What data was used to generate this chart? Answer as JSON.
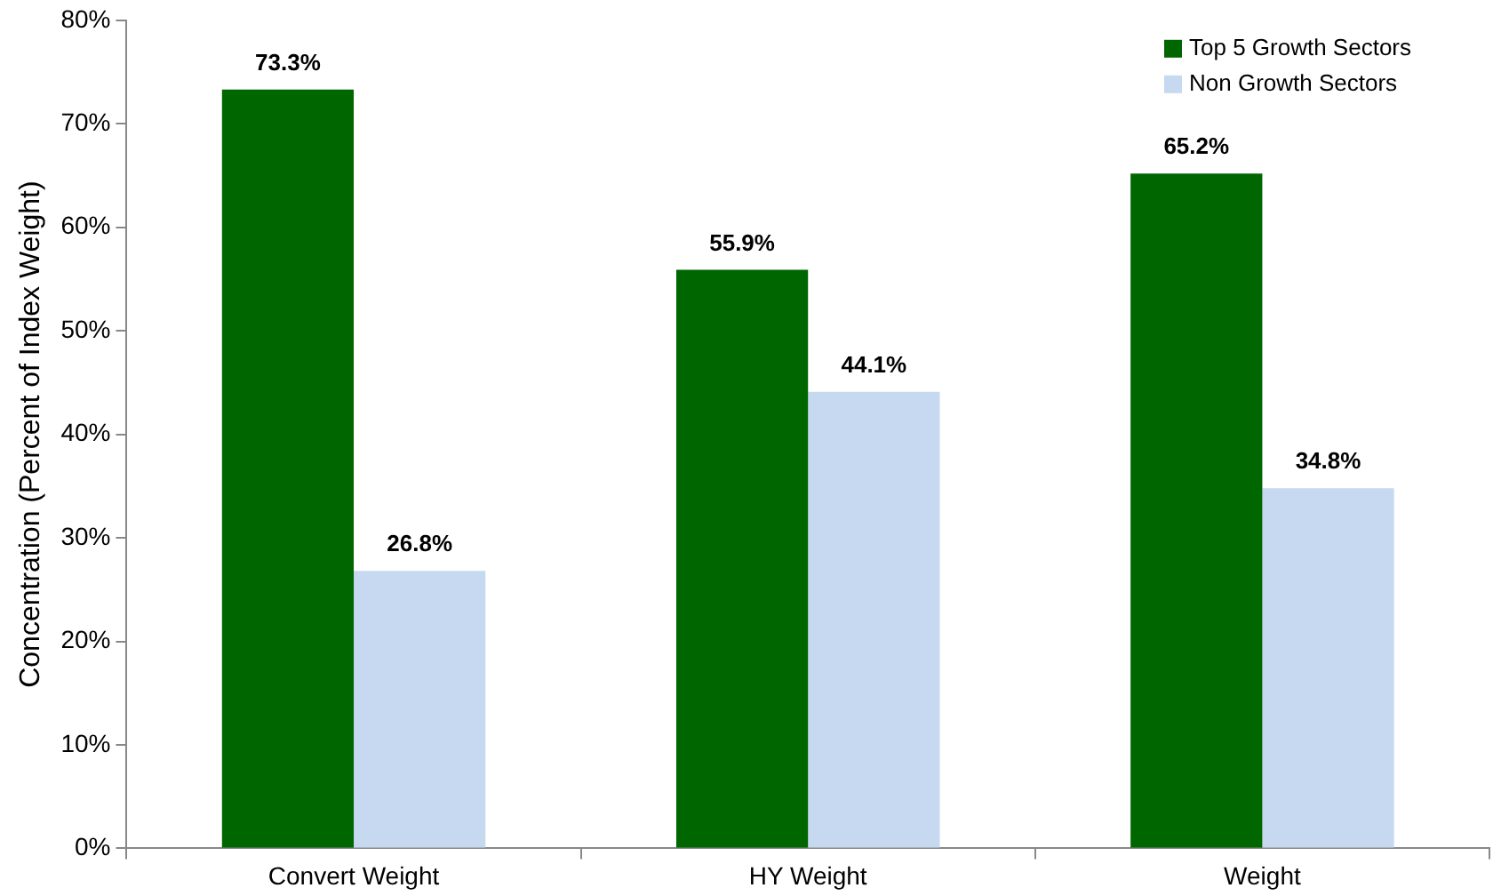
{
  "chart_data": {
    "type": "bar",
    "ylabel": "Concentration (Percent of Index Weight)",
    "categories": [
      "Convert Weight",
      "HY Weight",
      "Weight"
    ],
    "series": [
      {
        "name": "Top 5 Growth Sectors",
        "color": "#006600",
        "values": [
          73.3,
          55.9,
          65.2
        ],
        "value_labels": [
          "73.3%",
          "55.9%",
          "65.2%"
        ]
      },
      {
        "name": "Non Growth Sectors",
        "color": "#c6d9f1",
        "values": [
          26.8,
          44.1,
          34.8
        ],
        "value_labels": [
          "26.8%",
          "44.1%",
          "34.8%"
        ]
      }
    ],
    "ylim": [
      0,
      80
    ],
    "yticks": [
      {
        "value": 0,
        "label": "0%"
      },
      {
        "value": 10,
        "label": "10%"
      },
      {
        "value": 20,
        "label": "20%"
      },
      {
        "value": 30,
        "label": "30%"
      },
      {
        "value": 40,
        "label": "40%"
      },
      {
        "value": 50,
        "label": "50%"
      },
      {
        "value": 60,
        "label": "60%"
      },
      {
        "value": 70,
        "label": "70%"
      },
      {
        "value": 80,
        "label": "80%"
      }
    ],
    "grid": false,
    "legend": "top right"
  }
}
